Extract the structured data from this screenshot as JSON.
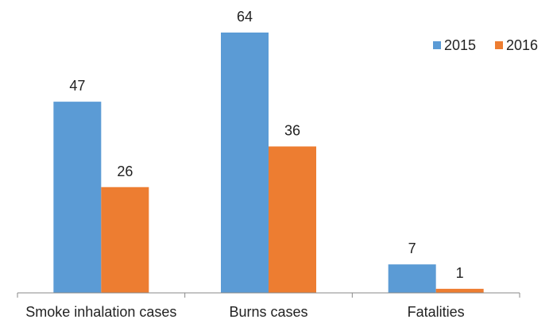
{
  "chart_data": {
    "type": "bar",
    "title": "",
    "xlabel": "",
    "ylabel": "",
    "categories": [
      "Smoke inhalation cases",
      "Burns cases",
      "Fatalities"
    ],
    "series": [
      {
        "name": "2015",
        "values": [
          47,
          64,
          7
        ],
        "color": "#5B9BD5"
      },
      {
        "name": "2016",
        "values": [
          26,
          36,
          1
        ],
        "color": "#ED7D31"
      }
    ],
    "ylim": [
      0,
      64
    ],
    "grid": false,
    "legend": "top-right",
    "data_labels": true
  }
}
